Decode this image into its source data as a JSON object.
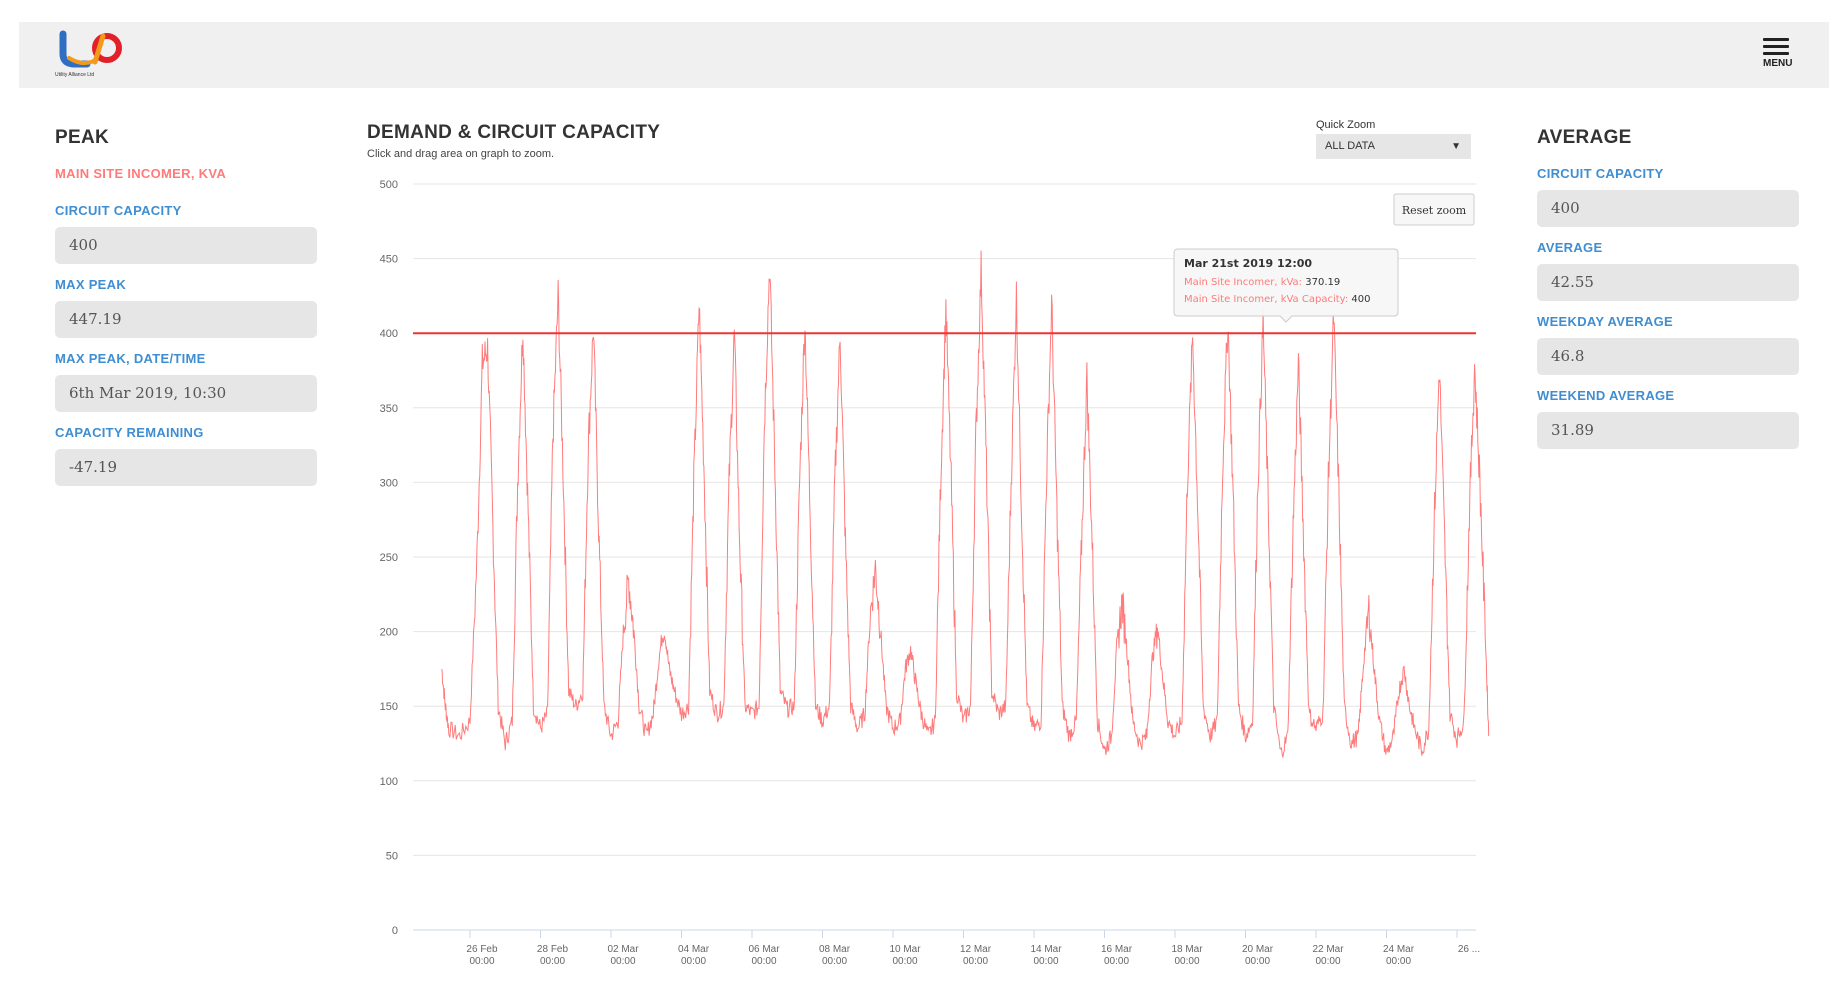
{
  "header": {
    "logo_text": "Utility Alliance Ltd",
    "menu_label": "MENU",
    "brand_colors": {
      "blue": "#2f6fc2",
      "orange": "#f39a1c",
      "red": "#e2202a"
    }
  },
  "peak": {
    "title": "PEAK",
    "subtitle": "MAIN SITE INCOMER, KVA",
    "fields": [
      {
        "label": "CIRCUIT CAPACITY",
        "value": "400"
      },
      {
        "label": "MAX PEAK",
        "value": "447.19"
      },
      {
        "label": "MAX PEAK, DATE/TIME",
        "value": "6th Mar 2019, 10:30"
      },
      {
        "label": "CAPACITY REMAINING",
        "value": "-47.19"
      }
    ]
  },
  "chart_panel": {
    "title": "DEMAND & CIRCUIT CAPACITY",
    "subtitle": "Click and drag area on graph to zoom.",
    "quick_zoom_label": "Quick Zoom",
    "quick_zoom_value": "ALL DATA",
    "quick_zoom_arrow": "▼",
    "reset_zoom_label": "Reset zoom",
    "tooltip": {
      "title": "Mar 21st 2019 12:00",
      "line1_label": "Main Site Incomer, kVa:",
      "line1_value": "370.19",
      "line2_label": "Main Site Incomer, kVa Capacity:",
      "line2_value": "400"
    }
  },
  "average": {
    "title": "AVERAGE",
    "fields": [
      {
        "label": "CIRCUIT CAPACITY",
        "value": "400"
      },
      {
        "label": "AVERAGE",
        "value": "42.55"
      },
      {
        "label": "WEEKDAY AVERAGE",
        "value": "46.8"
      },
      {
        "label": "WEEKEND AVERAGE",
        "value": "31.89"
      }
    ]
  },
  "chart_data": {
    "type": "line",
    "ylim": [
      0,
      500
    ],
    "yticks": [
      0,
      50,
      100,
      150,
      200,
      250,
      300,
      350,
      400,
      450,
      500
    ],
    "xticks": [
      "26 Feb 00:00",
      "28 Feb 00:00",
      "02 Mar 00:00",
      "04 Mar 00:00",
      "06 Mar 00:00",
      "08 Mar 00:00",
      "10 Mar 00:00",
      "12 Mar 00:00",
      "14 Mar 00:00",
      "16 Mar 00:00",
      "18 Mar 00:00",
      "20 Mar 00:00",
      "22 Mar 00:00",
      "24 Mar 00:00",
      "26 ..."
    ],
    "line_color": "#ff7b7b",
    "capacity_color": "#ee3333",
    "series": [
      {
        "values": [
          [
            -0.8,
            175
          ],
          [
            -0.7,
            150
          ],
          [
            -0.6,
            135
          ],
          [
            -0.3,
            130
          ],
          [
            0.0,
            140
          ],
          [
            0.2,
            250
          ],
          [
            0.35,
            380
          ],
          [
            0.5,
            390
          ],
          [
            0.65,
            270
          ],
          [
            0.8,
            150
          ],
          [
            1.0,
            125
          ],
          [
            1.2,
            140
          ],
          [
            1.35,
            300
          ],
          [
            1.5,
            405
          ],
          [
            1.65,
            280
          ],
          [
            1.8,
            150
          ],
          [
            2.0,
            135
          ],
          [
            2.2,
            145
          ],
          [
            2.35,
            330
          ],
          [
            2.5,
            425
          ],
          [
            2.65,
            300
          ],
          [
            2.8,
            160
          ],
          [
            3.0,
            150
          ],
          [
            3.2,
            160
          ],
          [
            3.35,
            320
          ],
          [
            3.5,
            405
          ],
          [
            3.65,
            270
          ],
          [
            3.8,
            150
          ],
          [
            4.0,
            130
          ],
          [
            4.2,
            140
          ],
          [
            4.35,
            200
          ],
          [
            4.5,
            235
          ],
          [
            4.65,
            200
          ],
          [
            4.8,
            150
          ],
          [
            5.0,
            130
          ],
          [
            5.2,
            145
          ],
          [
            5.35,
            180
          ],
          [
            5.5,
            205
          ],
          [
            5.65,
            175
          ],
          [
            5.8,
            160
          ],
          [
            6.0,
            145
          ],
          [
            6.2,
            150
          ],
          [
            6.35,
            300
          ],
          [
            6.5,
            420
          ],
          [
            6.65,
            300
          ],
          [
            6.8,
            160
          ],
          [
            7.0,
            145
          ],
          [
            7.2,
            150
          ],
          [
            7.35,
            300
          ],
          [
            7.5,
            400
          ],
          [
            7.65,
            260
          ],
          [
            7.8,
            150
          ],
          [
            8.0,
            145
          ],
          [
            8.2,
            150
          ],
          [
            8.35,
            340
          ],
          [
            8.5,
            447
          ],
          [
            8.65,
            310
          ],
          [
            8.8,
            160
          ],
          [
            9.0,
            148
          ],
          [
            9.2,
            150
          ],
          [
            9.35,
            300
          ],
          [
            9.5,
            410
          ],
          [
            9.65,
            280
          ],
          [
            9.8,
            150
          ],
          [
            10.0,
            140
          ],
          [
            10.2,
            150
          ],
          [
            10.35,
            300
          ],
          [
            10.5,
            400
          ],
          [
            10.65,
            260
          ],
          [
            10.8,
            150
          ],
          [
            11.0,
            135
          ],
          [
            11.2,
            145
          ],
          [
            11.35,
            210
          ],
          [
            11.5,
            243
          ],
          [
            11.65,
            200
          ],
          [
            11.8,
            150
          ],
          [
            12.0,
            135
          ],
          [
            12.2,
            140
          ],
          [
            12.35,
            175
          ],
          [
            12.5,
            188
          ],
          [
            12.65,
            165
          ],
          [
            12.8,
            145
          ],
          [
            13.0,
            130
          ],
          [
            13.2,
            140
          ],
          [
            13.35,
            300
          ],
          [
            13.5,
            418
          ],
          [
            13.65,
            300
          ],
          [
            13.8,
            160
          ],
          [
            14.0,
            140
          ],
          [
            14.2,
            150
          ],
          [
            14.35,
            330
          ],
          [
            14.5,
            443
          ],
          [
            14.65,
            310
          ],
          [
            14.8,
            160
          ],
          [
            15.0,
            145
          ],
          [
            15.2,
            150
          ],
          [
            15.35,
            300
          ],
          [
            15.5,
            425
          ],
          [
            15.65,
            280
          ],
          [
            15.8,
            150
          ],
          [
            16.0,
            135
          ],
          [
            16.2,
            140
          ],
          [
            16.35,
            300
          ],
          [
            16.5,
            420
          ],
          [
            16.65,
            280
          ],
          [
            16.8,
            150
          ],
          [
            17.0,
            130
          ],
          [
            17.2,
            140
          ],
          [
            17.35,
            260
          ],
          [
            17.5,
            370
          ],
          [
            17.65,
            260
          ],
          [
            17.8,
            140
          ],
          [
            18.0,
            120
          ],
          [
            18.2,
            130
          ],
          [
            18.35,
            190
          ],
          [
            18.5,
            220
          ],
          [
            18.65,
            185
          ],
          [
            18.8,
            140
          ],
          [
            19.0,
            125
          ],
          [
            19.2,
            130
          ],
          [
            19.35,
            180
          ],
          [
            19.5,
            205
          ],
          [
            19.65,
            170
          ],
          [
            19.8,
            140
          ],
          [
            20.0,
            130
          ],
          [
            20.2,
            140
          ],
          [
            20.35,
            300
          ],
          [
            20.5,
            398
          ],
          [
            20.65,
            280
          ],
          [
            20.8,
            150
          ],
          [
            21.0,
            130
          ],
          [
            21.2,
            140
          ],
          [
            21.35,
            310
          ],
          [
            21.5,
            410
          ],
          [
            21.65,
            290
          ],
          [
            21.8,
            150
          ],
          [
            22.0,
            130
          ],
          [
            22.2,
            140
          ],
          [
            22.35,
            300
          ],
          [
            22.5,
            408
          ],
          [
            22.65,
            280
          ],
          [
            22.8,
            150
          ],
          [
            23.0,
            118
          ],
          [
            23.2,
            130
          ],
          [
            23.35,
            270
          ],
          [
            23.5,
            380
          ],
          [
            23.65,
            260
          ],
          [
            23.8,
            145
          ],
          [
            24.0,
            135
          ],
          [
            24.2,
            145
          ],
          [
            24.35,
            300
          ],
          [
            24.5,
            412
          ],
          [
            24.65,
            290
          ],
          [
            24.8,
            150
          ],
          [
            25.0,
            125
          ],
          [
            25.2,
            130
          ],
          [
            25.35,
            180
          ],
          [
            25.5,
            215
          ],
          [
            25.65,
            175
          ],
          [
            25.8,
            140
          ],
          [
            26.0,
            118
          ],
          [
            26.2,
            130
          ],
          [
            26.35,
            160
          ],
          [
            26.5,
            175
          ],
          [
            26.65,
            150
          ],
          [
            26.8,
            135
          ],
          [
            27.0,
            120
          ],
          [
            27.2,
            135
          ],
          [
            27.35,
            270
          ],
          [
            27.5,
            378
          ],
          [
            27.65,
            260
          ],
          [
            27.8,
            145
          ],
          [
            28.0,
            128
          ],
          [
            28.2,
            140
          ],
          [
            28.35,
            280
          ],
          [
            28.5,
            378
          ],
          [
            28.65,
            300
          ],
          [
            28.8,
            200
          ],
          [
            28.9,
            130
          ]
        ]
      }
    ],
    "capacity_line": 400
  }
}
